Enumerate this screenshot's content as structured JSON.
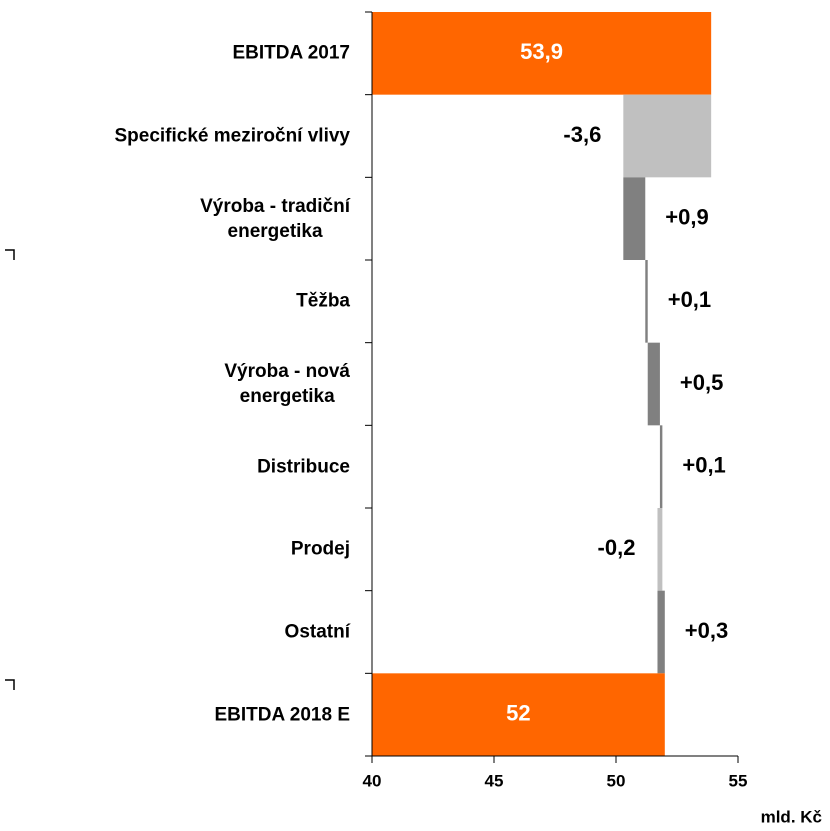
{
  "chart_data": {
    "type": "waterfall",
    "categories": [
      "EBITDA 2017",
      "Specifické meziroční vlivy",
      "Výroba - tradiční\nenergetika",
      "Těžba",
      "Výroba - nová\nenergetika",
      "Distribuce",
      "Prodej",
      "Ostatní",
      "EBITDA 2018 E"
    ],
    "measures": [
      "total",
      "relative",
      "relative",
      "relative",
      "relative",
      "relative",
      "relative",
      "relative",
      "total"
    ],
    "values": [
      53.9,
      -3.6,
      0.9,
      0.1,
      0.5,
      0.1,
      -0.2,
      0.3,
      52
    ],
    "value_labels": [
      "53,9",
      "-3,6",
      "+0,9",
      "+0,1",
      "+0,5",
      "+0,1",
      "-0,2",
      "+0,3",
      "52"
    ],
    "total_color": "#ff6600",
    "increase_color": "#808080",
    "decrease_color": "#c0c0c0",
    "xlim": [
      40,
      55
    ],
    "xticks": [
      40,
      45,
      50,
      55
    ],
    "xlabel": "mld. Kč"
  }
}
